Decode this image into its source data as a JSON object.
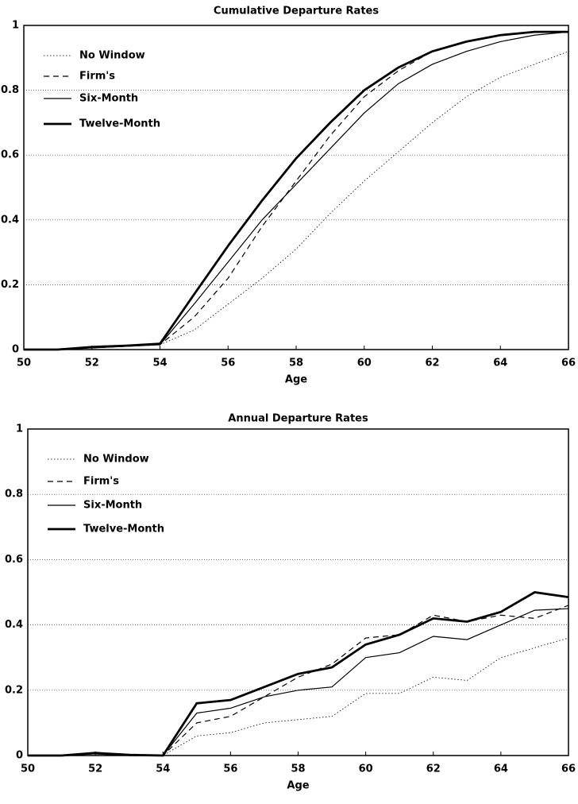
{
  "chart_data": [
    {
      "type": "line",
      "title": "Cumulative Departure Rates",
      "xlabel": "Age",
      "x": [
        50,
        51,
        52,
        53,
        54,
        55,
        56,
        57,
        58,
        59,
        60,
        61,
        62,
        63,
        64,
        65,
        66
      ],
      "xlim": [
        50,
        66
      ],
      "xticks": [
        50,
        52,
        54,
        56,
        58,
        60,
        62,
        64,
        66
      ],
      "ylim": [
        0,
        1
      ],
      "yticks": [
        0,
        0.2,
        0.4,
        0.6,
        0.8,
        1
      ],
      "grid": true,
      "legend": "upper left",
      "series": [
        {
          "name": "No Window",
          "color": "#000000",
          "dash": "dotted",
          "width": 0.8,
          "values": [
            0,
            0,
            0.005,
            0.01,
            0.015,
            0.06,
            0.14,
            0.22,
            0.31,
            0.42,
            0.52,
            0.61,
            0.7,
            0.78,
            0.84,
            0.88,
            0.92
          ]
        },
        {
          "name": "Firm's",
          "color": "#000000",
          "dash": "dashed",
          "width": 1.2,
          "values": [
            0,
            0,
            0.005,
            0.01,
            0.015,
            0.1,
            0.22,
            0.38,
            0.52,
            0.66,
            0.78,
            0.86,
            0.92,
            0.95,
            0.97,
            0.98,
            0.98
          ]
        },
        {
          "name": "Six-Month",
          "color": "#000000",
          "dash": "solid",
          "width": 1.2,
          "values": [
            0,
            0,
            0.005,
            0.01,
            0.015,
            0.14,
            0.27,
            0.4,
            0.51,
            0.62,
            0.73,
            0.82,
            0.88,
            0.92,
            0.95,
            0.97,
            0.98
          ]
        },
        {
          "name": "Twelve-Month",
          "color": "#000000",
          "dash": "solid",
          "width": 2.8,
          "values": [
            0,
            0,
            0.008,
            0.012,
            0.018,
            0.17,
            0.32,
            0.46,
            0.59,
            0.7,
            0.8,
            0.87,
            0.92,
            0.95,
            0.97,
            0.98,
            0.98
          ]
        }
      ]
    },
    {
      "type": "line",
      "title": "Annual Departure Rates",
      "xlabel": "Age",
      "x": [
        50,
        51,
        52,
        53,
        54,
        55,
        56,
        57,
        58,
        59,
        60,
        61,
        62,
        63,
        64,
        65,
        66
      ],
      "xlim": [
        50,
        66
      ],
      "xticks": [
        50,
        52,
        54,
        56,
        58,
        60,
        62,
        64,
        66
      ],
      "ylim": [
        0,
        1
      ],
      "yticks": [
        0,
        0.2,
        0.4,
        0.6,
        0.8,
        1
      ],
      "grid": true,
      "legend": "upper left",
      "series": [
        {
          "name": "No Window",
          "color": "#000000",
          "dash": "dotted",
          "width": 0.8,
          "values": [
            0,
            0,
            0.005,
            0,
            0,
            0.06,
            0.07,
            0.1,
            0.11,
            0.12,
            0.19,
            0.19,
            0.24,
            0.23,
            0.3,
            0.33,
            0.36
          ]
        },
        {
          "name": "Firm's",
          "color": "#000000",
          "dash": "dashed",
          "width": 1.2,
          "values": [
            0,
            0,
            0.005,
            0,
            0,
            0.1,
            0.12,
            0.18,
            0.24,
            0.28,
            0.36,
            0.37,
            0.43,
            0.41,
            0.43,
            0.42,
            0.46
          ]
        },
        {
          "name": "Six-Month",
          "color": "#000000",
          "dash": "solid",
          "width": 1.2,
          "values": [
            0,
            0,
            0.005,
            0,
            0,
            0.13,
            0.145,
            0.18,
            0.2,
            0.21,
            0.3,
            0.315,
            0.365,
            0.355,
            0.4,
            0.445,
            0.45
          ]
        },
        {
          "name": "Twelve-Month",
          "color": "#000000",
          "dash": "solid",
          "width": 2.8,
          "values": [
            0,
            0,
            0.008,
            0.002,
            0,
            0.16,
            0.17,
            0.21,
            0.25,
            0.27,
            0.34,
            0.37,
            0.42,
            0.41,
            0.44,
            0.5,
            0.485
          ]
        }
      ]
    }
  ]
}
